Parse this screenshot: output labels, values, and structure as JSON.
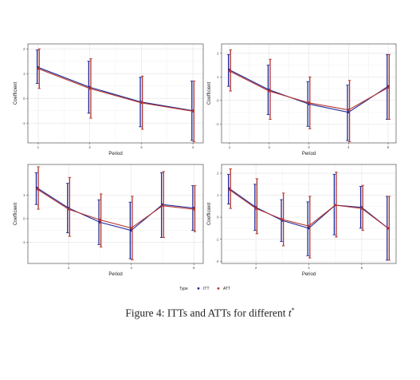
{
  "chart_data": [
    {
      "type": "line",
      "xlabel": "Period",
      "ylabel": "Coefficient",
      "xlim": [
        0.8,
        4.2
      ],
      "ylim": [
        -1.8,
        2.2
      ],
      "xticks": [
        1,
        2,
        3,
        4
      ],
      "yticks": [
        -1,
        0,
        1,
        2
      ],
      "series": [
        {
          "name": "ITT",
          "color": "#1f2b9a",
          "x": [
            1,
            2,
            3,
            4
          ],
          "y": [
            1.25,
            0.45,
            -0.15,
            -0.5
          ],
          "lower": [
            0.6,
            -0.6,
            -1.15,
            -1.7
          ],
          "upper": [
            1.95,
            1.5,
            0.85,
            0.7
          ]
        },
        {
          "name": "ATT",
          "color": "#b5342f",
          "x": [
            1,
            2,
            3,
            4
          ],
          "y": [
            1.2,
            0.4,
            -0.18,
            -0.52
          ],
          "lower": [
            0.4,
            -0.8,
            -1.25,
            -1.75
          ],
          "upper": [
            2.0,
            1.6,
            0.9,
            0.7
          ]
        }
      ]
    },
    {
      "type": "line",
      "xlabel": "Period",
      "ylabel": "Coefficient",
      "xlim": [
        0.8,
        5.2
      ],
      "ylim": [
        -1.8,
        2.4
      ],
      "xticks": [
        1,
        2,
        3,
        4,
        5
      ],
      "yticks": [
        -1,
        0,
        1,
        2
      ],
      "series": [
        {
          "name": "ITT",
          "color": "#1f2b9a",
          "x": [
            1,
            2,
            3,
            4,
            5
          ],
          "y": [
            1.3,
            0.45,
            -0.15,
            -0.5,
            0.6
          ],
          "lower": [
            0.6,
            -0.6,
            -1.1,
            -1.7,
            -0.8
          ],
          "upper": [
            1.95,
            1.5,
            0.8,
            0.65,
            1.95
          ]
        },
        {
          "name": "ATT",
          "color": "#b5342f",
          "x": [
            1,
            2,
            3,
            4,
            5
          ],
          "y": [
            1.25,
            0.4,
            -0.1,
            -0.4,
            0.55
          ],
          "lower": [
            0.4,
            -0.8,
            -1.2,
            -1.75,
            -0.8
          ],
          "upper": [
            2.15,
            1.75,
            1.0,
            0.85,
            1.95
          ]
        }
      ]
    },
    {
      "type": "line",
      "xlabel": "Period",
      "ylabel": "Coefficient",
      "xlim": [
        0.7,
        6.3
      ],
      "ylim": [
        -1.9,
        2.3
      ],
      "xticks": [
        2,
        4,
        6
      ],
      "yticks": [
        -1,
        0,
        1
      ],
      "series": [
        {
          "name": "ITT",
          "color": "#1f2b9a",
          "x": [
            1,
            2,
            3,
            4,
            5,
            6
          ],
          "y": [
            1.3,
            0.45,
            -0.15,
            -0.5,
            0.6,
            0.45
          ],
          "lower": [
            0.6,
            -0.6,
            -1.1,
            -1.7,
            -0.8,
            -0.5
          ],
          "upper": [
            1.95,
            1.5,
            0.8,
            0.7,
            1.95,
            1.4
          ]
        },
        {
          "name": "ATT",
          "color": "#b5342f",
          "x": [
            1,
            2,
            3,
            4,
            5,
            6
          ],
          "y": [
            1.25,
            0.4,
            -0.05,
            -0.4,
            0.55,
            0.4
          ],
          "lower": [
            0.4,
            -0.75,
            -1.2,
            -1.75,
            -0.8,
            -0.55
          ],
          "upper": [
            2.2,
            1.75,
            1.05,
            0.95,
            2.0,
            1.4
          ]
        }
      ]
    },
    {
      "type": "line",
      "xlabel": "Period",
      "ylabel": "Coefficient",
      "xlim": [
        0.7,
        7.3
      ],
      "ylim": [
        -2.1,
        2.4
      ],
      "xticks": [
        2,
        4,
        6
      ],
      "yticks": [
        -2,
        -1,
        0,
        1,
        2
      ],
      "series": [
        {
          "name": "ITT",
          "color": "#1f2b9a",
          "x": [
            1,
            2,
            3,
            4,
            5,
            6,
            7
          ],
          "y": [
            1.3,
            0.45,
            -0.15,
            -0.5,
            0.55,
            0.45,
            -0.5
          ],
          "lower": [
            0.6,
            -0.6,
            -1.1,
            -1.75,
            -0.8,
            -0.5,
            -1.95
          ],
          "upper": [
            1.95,
            1.5,
            0.8,
            0.7,
            1.95,
            1.4,
            0.95
          ]
        },
        {
          "name": "ATT",
          "color": "#b5342f",
          "x": [
            1,
            2,
            3,
            4,
            5,
            6,
            7
          ],
          "y": [
            1.25,
            0.4,
            -0.1,
            -0.4,
            0.55,
            0.4,
            -0.5
          ],
          "lower": [
            0.4,
            -0.75,
            -1.3,
            -1.85,
            -0.9,
            -0.6,
            -1.95
          ],
          "upper": [
            2.2,
            1.75,
            1.1,
            0.95,
            2.05,
            1.45,
            0.95
          ]
        }
      ]
    }
  ],
  "legend": {
    "title": "Type",
    "placement": "bottom",
    "items": [
      {
        "label": "ITT",
        "color": "#1f2b9a"
      },
      {
        "label": "ATT",
        "color": "#b5342f"
      }
    ]
  },
  "caption": {
    "prefix": "Figure 4: ITTs and ATTs for different ",
    "variable": "t",
    "superscript": "*"
  }
}
